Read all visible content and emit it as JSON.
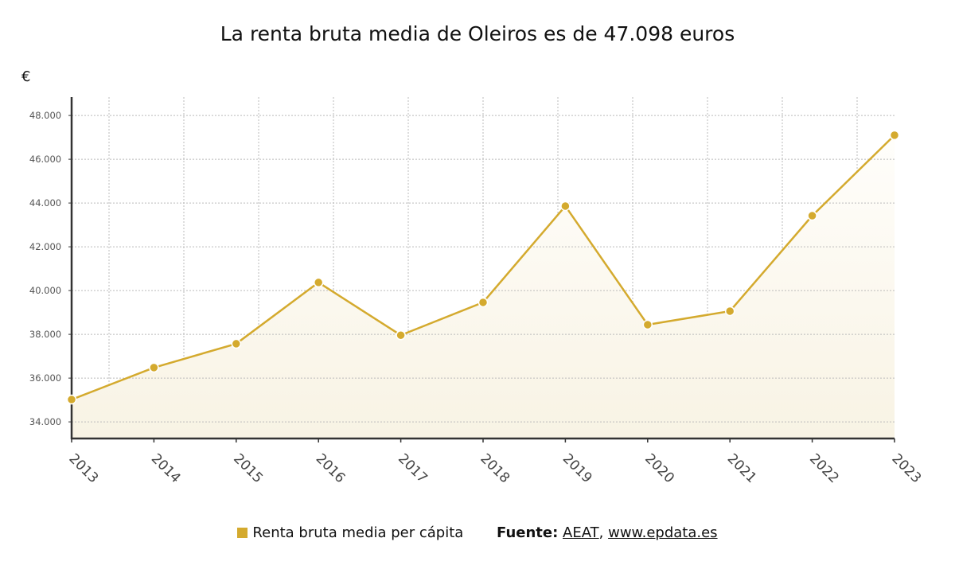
{
  "chart_data": {
    "type": "area",
    "title": "La renta bruta media de Oleiros es de 47.098 euros",
    "ylabel": "€",
    "xlabel": "",
    "categories": [
      "2013",
      "2014",
      "2015",
      "2016",
      "2017",
      "2018",
      "2019",
      "2020",
      "2021",
      "2022",
      "2023"
    ],
    "series": [
      {
        "name": "Renta bruta media per cápita",
        "values": [
          35020,
          36480,
          37570,
          40370,
          37960,
          39460,
          43860,
          38440,
          39060,
          43420,
          47098
        ]
      }
    ],
    "ylim": [
      33240,
      48840
    ],
    "yticks": [
      34000,
      36000,
      38000,
      40000,
      42000,
      44000,
      46000,
      48000
    ],
    "ytick_labels": [
      "34.000",
      "36.000",
      "38.000",
      "40.000",
      "42.000",
      "44.000",
      "46.000",
      "48.000"
    ],
    "grid": true,
    "legend_position": "bottom",
    "colors": {
      "line": "#d4aa2e",
      "fill": "#f8f4e6"
    }
  },
  "source": {
    "label": "Fuente:",
    "links": [
      "AEAT",
      "www.epdata.es"
    ],
    "separator": ","
  }
}
